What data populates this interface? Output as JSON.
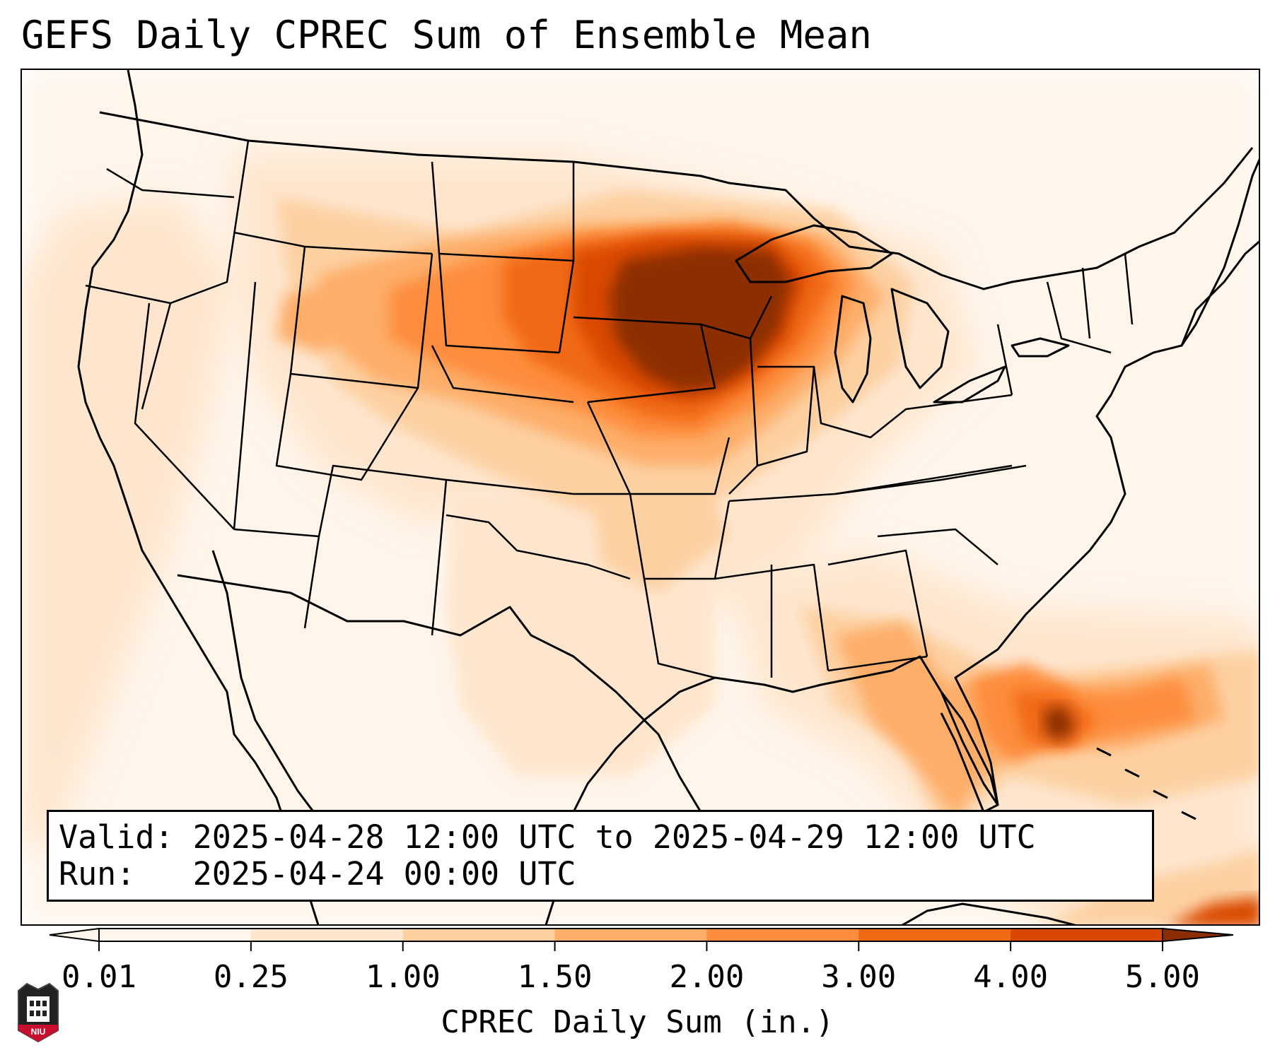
{
  "title": "GEFS Daily CPREC Sum of Ensemble Mean",
  "info": {
    "valid_label": "Valid:",
    "valid_value": "2025-04-28 12:00 UTC to 2025-04-29 12:00 UTC",
    "run_label": "Run:",
    "run_value": "2025-04-24 00:00 UTC"
  },
  "colorbar": {
    "label": "CPREC Daily Sum (in.)",
    "ticks": [
      "0.01",
      "0.25",
      "1.00",
      "1.50",
      "2.00",
      "3.00",
      "4.00",
      "5.00"
    ],
    "colors": [
      "#fff5eb",
      "#fee6ce",
      "#fdd0a2",
      "#fdae6b",
      "#fd8d3c",
      "#f16913",
      "#d94801",
      "#8c2d04"
    ]
  },
  "logo": {
    "text": "NIU"
  },
  "colors": {
    "heavy": "#8c2d04",
    "strong": "#d94801",
    "moderate": "#f16913",
    "medium": "#fd8d3c",
    "light": "#fdae6b",
    "pale": "#fdd0a2",
    "faint": "#fee6ce",
    "trace": "#fff5eb"
  }
}
